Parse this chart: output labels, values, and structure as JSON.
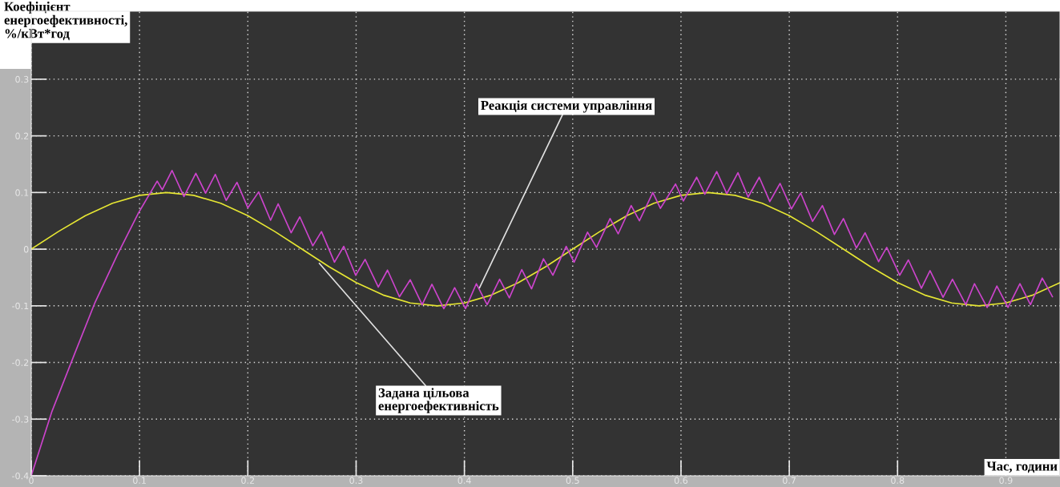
{
  "chart_data": {
    "type": "line",
    "ylabel": "Коефіцієнт\nенергоефективності,\n%/кВт*год",
    "xlabel": "Час, години",
    "xlim": [
      0,
      0.95
    ],
    "ylim": [
      -0.4,
      0.42
    ],
    "xticks": [
      0,
      0.1,
      0.2,
      0.3,
      0.4,
      0.5,
      0.6,
      0.7,
      0.8,
      0.9
    ],
    "yticks": [
      -0.4,
      -0.3,
      -0.2,
      -0.1,
      0,
      0.1,
      0.2,
      0.3
    ],
    "grid": true,
    "line_style": "solid",
    "marker": "none",
    "series": [
      {
        "color": "#e6e633",
        "x": [
          0,
          0.025,
          0.05,
          0.075,
          0.1,
          0.125,
          0.15,
          0.175,
          0.2,
          0.225,
          0.25,
          0.275,
          0.3,
          0.325,
          0.35,
          0.375,
          0.4,
          0.425,
          0.45,
          0.475,
          0.5,
          0.525,
          0.55,
          0.575,
          0.6,
          0.625,
          0.65,
          0.675,
          0.7,
          0.725,
          0.75,
          0.775,
          0.8,
          0.825,
          0.85,
          0.875,
          0.9,
          0.925,
          0.95
        ],
        "values": [
          0,
          0.031,
          0.059,
          0.081,
          0.095,
          0.1,
          0.095,
          0.081,
          0.059,
          0.031,
          0,
          -0.031,
          -0.059,
          -0.081,
          -0.095,
          -0.1,
          -0.095,
          -0.081,
          -0.059,
          -0.031,
          0,
          0.031,
          0.059,
          0.081,
          0.095,
          0.1,
          0.095,
          0.081,
          0.059,
          0.031,
          0,
          -0.031,
          -0.059,
          -0.081,
          -0.095,
          -0.1,
          -0.095,
          -0.081,
          -0.059
        ]
      },
      {
        "color": "#cc44cc",
        "x": [
          0,
          0.0192,
          0.04,
          0.0585,
          0.0795,
          0.099,
          0.1163,
          0.121,
          0.13,
          0.141,
          0.152,
          0.161,
          0.17,
          0.18,
          0.19,
          0.2,
          0.21,
          0.221,
          0.228,
          0.24,
          0.248,
          0.26,
          0.268,
          0.28,
          0.2886,
          0.2996,
          0.3083,
          0.3205,
          0.329,
          0.34,
          0.35,
          0.361,
          0.37,
          0.381,
          0.391,
          0.401,
          0.411,
          0.421,
          0.4325,
          0.4415,
          0.453,
          0.462,
          0.473,
          0.4817,
          0.494,
          0.5013,
          0.5137,
          0.522,
          0.5345,
          0.542,
          0.554,
          0.5616,
          0.574,
          0.581,
          0.595,
          0.6022,
          0.6145,
          0.622,
          0.633,
          0.6423,
          0.6526,
          0.662,
          0.6723,
          0.682,
          0.6915,
          0.702,
          0.7105,
          0.7215,
          0.7306,
          0.7417,
          0.75,
          0.762,
          0.77,
          0.7825,
          0.79,
          0.802,
          0.81,
          0.822,
          0.83,
          0.842,
          0.8507,
          0.863,
          0.871,
          0.8827,
          0.8917,
          0.902,
          0.913,
          0.9227,
          0.9336,
          0.943
        ],
        "values": [
          -0.4,
          -0.286,
          -0.185,
          -0.096,
          -0.01,
          0.064,
          0.12,
          0.105,
          0.139,
          0.093,
          0.134,
          0.099,
          0.132,
          0.086,
          0.118,
          0.073,
          0.101,
          0.051,
          0.08,
          0.029,
          0.057,
          0.006,
          0.031,
          -0.023,
          0.005,
          -0.046,
          -0.018,
          -0.067,
          -0.037,
          -0.084,
          -0.054,
          -0.098,
          -0.062,
          -0.105,
          -0.068,
          -0.105,
          -0.061,
          -0.098,
          -0.053,
          -0.086,
          -0.036,
          -0.07,
          -0.017,
          -0.046,
          0.005,
          -0.023,
          0.03,
          0.003,
          0.054,
          0.027,
          0.077,
          0.05,
          0.1,
          0.072,
          0.115,
          0.085,
          0.127,
          0.097,
          0.137,
          0.098,
          0.135,
          0.092,
          0.127,
          0.084,
          0.116,
          0.071,
          0.099,
          0.049,
          0.077,
          0.026,
          0.054,
          0.002,
          0.029,
          -0.022,
          0.003,
          -0.046,
          -0.019,
          -0.069,
          -0.038,
          -0.085,
          -0.053,
          -0.098,
          -0.061,
          -0.103,
          -0.065,
          -0.103,
          -0.061,
          -0.098,
          -0.051,
          -0.084
        ]
      }
    ],
    "annotations": [
      {
        "text": "Реакція системи управління",
        "x": 0.414,
        "y": -0.068
      },
      {
        "text": "Задана цільова\nенергоефективність",
        "x": 0.266,
        "y": -0.025
      }
    ]
  }
}
